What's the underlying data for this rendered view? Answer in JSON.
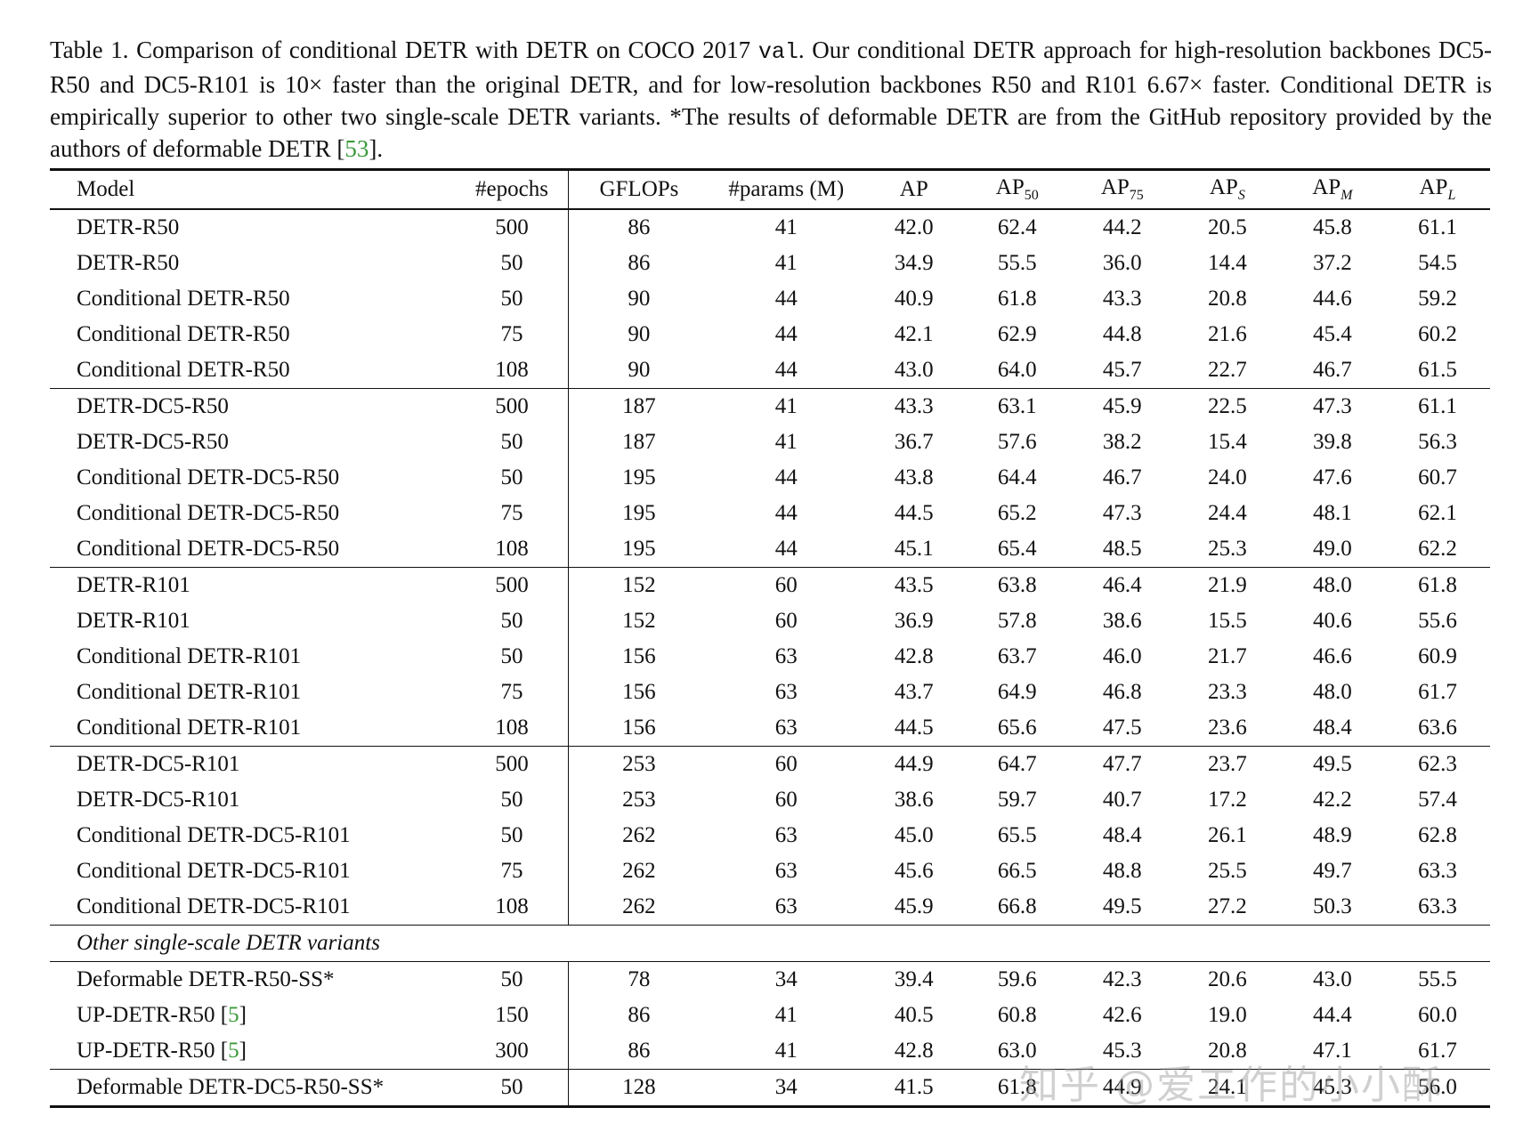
{
  "caption": {
    "part1": "Table 1. Comparison of conditional DETR with DETR on COCO 2017 ",
    "mono": "val",
    "part2": ". Our conditional DETR approach for high-resolution backbones DC5-R50 and DC5-R101 is 10× faster than the original DETR, and for low-resolution backbones R50 and R101 6.67× faster. Conditional DETR is empirically superior to other two single-scale DETR variants. *The results of deformable DETR are from the GitHub repository provided by the authors of deformable DETR [",
    "cite": "53",
    "part3": "]."
  },
  "headers": {
    "model": "Model",
    "epochs": "#epochs",
    "gflops": "GFLOPs",
    "params": "#params (M)",
    "ap": "AP",
    "ap_base": "AP",
    "ap50_sub": "50",
    "ap75_sub": "75",
    "aps_sub": "S",
    "apm_sub": "M",
    "apl_sub": "L"
  },
  "rows": [
    {
      "model": "DETR-R50",
      "epochs": "500",
      "gflops": "86",
      "params": "41",
      "ap": "42.0",
      "ap50": "62.4",
      "ap75": "44.2",
      "aps": "20.5",
      "apm": "45.8",
      "apl": "61.1"
    },
    {
      "model": "DETR-R50",
      "epochs": "50",
      "gflops": "86",
      "params": "41",
      "ap": "34.9",
      "ap50": "55.5",
      "ap75": "36.0",
      "aps": "14.4",
      "apm": "37.2",
      "apl": "54.5"
    },
    {
      "model": "Conditional DETR-R50",
      "epochs": "50",
      "gflops": "90",
      "params": "44",
      "ap": "40.9",
      "ap50": "61.8",
      "ap75": "43.3",
      "aps": "20.8",
      "apm": "44.6",
      "apl": "59.2"
    },
    {
      "model": "Conditional DETR-R50",
      "epochs": "75",
      "gflops": "90",
      "params": "44",
      "ap": "42.1",
      "ap50": "62.9",
      "ap75": "44.8",
      "aps": "21.6",
      "apm": "45.4",
      "apl": "60.2"
    },
    {
      "model": "Conditional DETR-R50",
      "epochs": "108",
      "gflops": "90",
      "params": "44",
      "ap": "43.0",
      "ap50": "64.0",
      "ap75": "45.7",
      "aps": "22.7",
      "apm": "46.7",
      "apl": "61.5"
    },
    {
      "model": "DETR-DC5-R50",
      "epochs": "500",
      "gflops": "187",
      "params": "41",
      "ap": "43.3",
      "ap50": "63.1",
      "ap75": "45.9",
      "aps": "22.5",
      "apm": "47.3",
      "apl": "61.1"
    },
    {
      "model": "DETR-DC5-R50",
      "epochs": "50",
      "gflops": "187",
      "params": "41",
      "ap": "36.7",
      "ap50": "57.6",
      "ap75": "38.2",
      "aps": "15.4",
      "apm": "39.8",
      "apl": "56.3"
    },
    {
      "model": "Conditional DETR-DC5-R50",
      "epochs": "50",
      "gflops": "195",
      "params": "44",
      "ap": "43.8",
      "ap50": "64.4",
      "ap75": "46.7",
      "aps": "24.0",
      "apm": "47.6",
      "apl": "60.7"
    },
    {
      "model": "Conditional DETR-DC5-R50",
      "epochs": "75",
      "gflops": "195",
      "params": "44",
      "ap": "44.5",
      "ap50": "65.2",
      "ap75": "47.3",
      "aps": "24.4",
      "apm": "48.1",
      "apl": "62.1"
    },
    {
      "model": "Conditional DETR-DC5-R50",
      "epochs": "108",
      "gflops": "195",
      "params": "44",
      "ap": "45.1",
      "ap50": "65.4",
      "ap75": "48.5",
      "aps": "25.3",
      "apm": "49.0",
      "apl": "62.2"
    },
    {
      "model": "DETR-R101",
      "epochs": "500",
      "gflops": "152",
      "params": "60",
      "ap": "43.5",
      "ap50": "63.8",
      "ap75": "46.4",
      "aps": "21.9",
      "apm": "48.0",
      "apl": "61.8"
    },
    {
      "model": "DETR-R101",
      "epochs": "50",
      "gflops": "152",
      "params": "60",
      "ap": "36.9",
      "ap50": "57.8",
      "ap75": "38.6",
      "aps": "15.5",
      "apm": "40.6",
      "apl": "55.6"
    },
    {
      "model": "Conditional DETR-R101",
      "epochs": "50",
      "gflops": "156",
      "params": "63",
      "ap": "42.8",
      "ap50": "63.7",
      "ap75": "46.0",
      "aps": "21.7",
      "apm": "46.6",
      "apl": "60.9"
    },
    {
      "model": "Conditional DETR-R101",
      "epochs": "75",
      "gflops": "156",
      "params": "63",
      "ap": "43.7",
      "ap50": "64.9",
      "ap75": "46.8",
      "aps": "23.3",
      "apm": "48.0",
      "apl": "61.7"
    },
    {
      "model": "Conditional DETR-R101",
      "epochs": "108",
      "gflops": "156",
      "params": "63",
      "ap": "44.5",
      "ap50": "65.6",
      "ap75": "47.5",
      "aps": "23.6",
      "apm": "48.4",
      "apl": "63.6"
    },
    {
      "model": "DETR-DC5-R101",
      "epochs": "500",
      "gflops": "253",
      "params": "60",
      "ap": "44.9",
      "ap50": "64.7",
      "ap75": "47.7",
      "aps": "23.7",
      "apm": "49.5",
      "apl": "62.3"
    },
    {
      "model": "DETR-DC5-R101",
      "epochs": "50",
      "gflops": "253",
      "params": "60",
      "ap": "38.6",
      "ap50": "59.7",
      "ap75": "40.7",
      "aps": "17.2",
      "apm": "42.2",
      "apl": "57.4"
    },
    {
      "model": "Conditional DETR-DC5-R101",
      "epochs": "50",
      "gflops": "262",
      "params": "63",
      "ap": "45.0",
      "ap50": "65.5",
      "ap75": "48.4",
      "aps": "26.1",
      "apm": "48.9",
      "apl": "62.8"
    },
    {
      "model": "Conditional DETR-DC5-R101",
      "epochs": "75",
      "gflops": "262",
      "params": "63",
      "ap": "45.6",
      "ap50": "66.5",
      "ap75": "48.8",
      "aps": "25.5",
      "apm": "49.7",
      "apl": "63.3"
    },
    {
      "model": "Conditional DETR-DC5-R101",
      "epochs": "108",
      "gflops": "262",
      "params": "63",
      "ap": "45.9",
      "ap50": "66.8",
      "ap75": "49.5",
      "aps": "27.2",
      "apm": "50.3",
      "apl": "63.3"
    },
    {
      "model": "Deformable DETR-R50-SS*",
      "epochs": "50",
      "gflops": "78",
      "params": "34",
      "ap": "39.4",
      "ap50": "59.6",
      "ap75": "42.3",
      "aps": "20.6",
      "apm": "43.0",
      "apl": "55.5"
    },
    {
      "model": "UP-DETR-R50 [",
      "cite": "5",
      "cite_close": "]",
      "epochs": "150",
      "gflops": "86",
      "params": "41",
      "ap": "40.5",
      "ap50": "60.8",
      "ap75": "42.6",
      "aps": "19.0",
      "apm": "44.4",
      "apl": "60.0"
    },
    {
      "model": "UP-DETR-R50 [",
      "cite": "5",
      "cite_close": "]",
      "epochs": "300",
      "gflops": "86",
      "params": "41",
      "ap": "42.8",
      "ap50": "63.0",
      "ap75": "45.3",
      "aps": "20.8",
      "apm": "47.1",
      "apl": "61.7"
    },
    {
      "model": "Deformable DETR-DC5-R50-SS*",
      "epochs": "50",
      "gflops": "128",
      "params": "34",
      "ap": "41.5",
      "ap50": "61.8",
      "ap75": "44.9",
      "aps": "24.1",
      "apm": "45.3",
      "apl": "56.0"
    }
  ],
  "other_section_label": "Other single-scale DETR variants",
  "watermark": "知乎 @爱工作的小小酥"
}
